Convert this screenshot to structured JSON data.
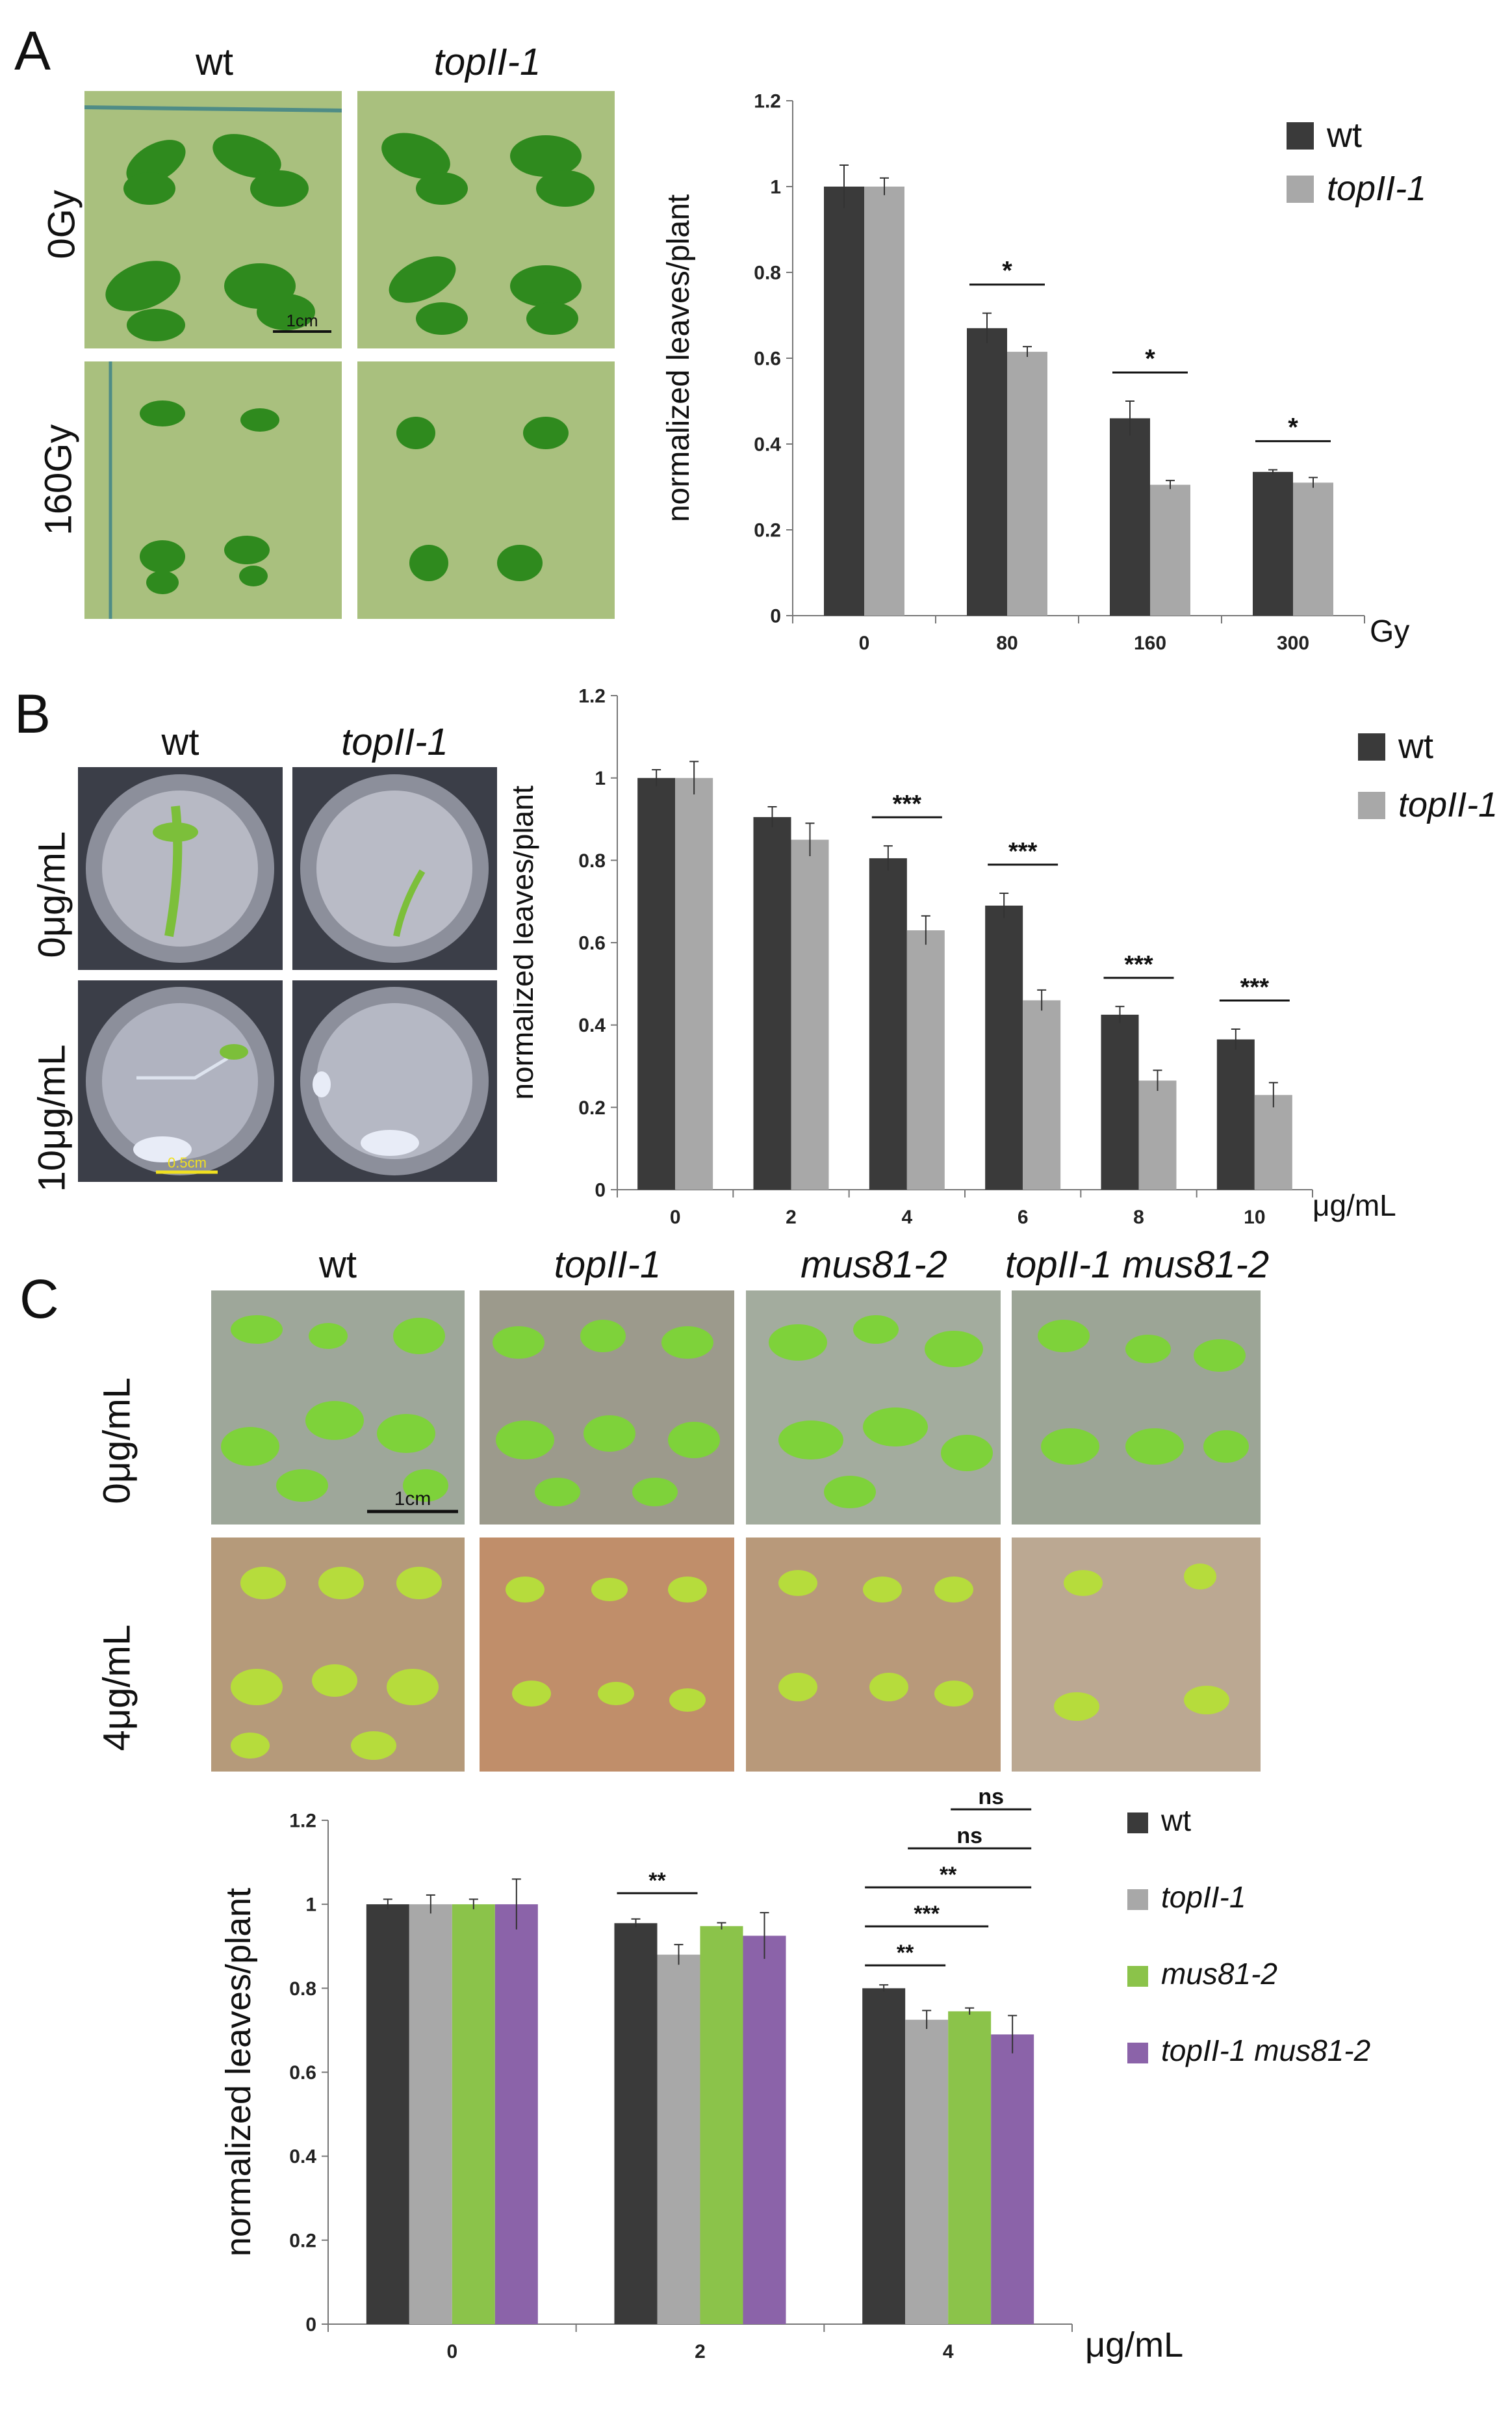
{
  "panels": {
    "A": {
      "letter": "A",
      "columns": [
        "wt",
        "topII-1"
      ],
      "rows": [
        "0Gy",
        "160Gy"
      ],
      "scale_bar": "1cm",
      "colors": {
        "plate": "#a9c07e",
        "plant": "#2f8a1e"
      }
    },
    "B": {
      "letter": "B",
      "columns": [
        "wt",
        "topII-1"
      ],
      "rows": [
        "0μg/mL",
        "10μg/mL"
      ],
      "scale_bar": "0.5cm",
      "colors": {
        "plate": "#8c8f9b",
        "plant": "#7cbf3a"
      }
    },
    "C": {
      "letter": "C",
      "columns": [
        "wt",
        "topII-1",
        "mus81-2",
        "topII-1 mus81-2"
      ],
      "rows": [
        "0μg/mL",
        "4μg/mL"
      ],
      "scale_bar": "1cm",
      "colors": {
        "plate_top": "#9ea79a",
        "plate_bottom": "#b59a7a",
        "plant_top": "#7ed23a",
        "plant_bottom": "#b6dc3c"
      }
    }
  },
  "chart_data": [
    {
      "id": "A",
      "type": "bar",
      "categories": [
        "0",
        "80",
        "160",
        "300"
      ],
      "x_unit": "Gy",
      "ylabel": "normalized leaves/plant",
      "ylim": [
        0,
        1.2
      ],
      "yticks": [
        "0",
        "0.2",
        "0.4",
        "0.6",
        "0.8",
        "1",
        "1.2"
      ],
      "series": [
        {
          "name": "wt",
          "color": "#3a3a3a",
          "values": [
            1.0,
            0.67,
            0.46,
            0.335
          ],
          "errors": [
            0.05,
            0.035,
            0.04,
            0.005
          ]
        },
        {
          "name": "topII-1",
          "color": "#a8a8a8",
          "values": [
            1.0,
            0.615,
            0.305,
            0.31
          ],
          "errors": [
            0.02,
            0.012,
            0.01,
            0.012
          ]
        }
      ],
      "significance": [
        {
          "group": 1,
          "label": "*"
        },
        {
          "group": 2,
          "label": "*"
        },
        {
          "group": 3,
          "label": "*"
        }
      ],
      "legend": "top-right"
    },
    {
      "id": "B",
      "type": "bar",
      "categories": [
        "0",
        "2",
        "4",
        "6",
        "8",
        "10"
      ],
      "x_unit": "μg/mL",
      "ylabel": "normalized leaves/plant",
      "ylim": [
        0,
        1.2
      ],
      "yticks": [
        "0",
        "0.2",
        "0.4",
        "0.6",
        "0.8",
        "1",
        "1.2"
      ],
      "series": [
        {
          "name": "wt",
          "color": "#3a3a3a",
          "values": [
            1.0,
            0.905,
            0.805,
            0.69,
            0.425,
            0.365
          ],
          "errors": [
            0.02,
            0.025,
            0.03,
            0.03,
            0.02,
            0.025
          ]
        },
        {
          "name": "topII-1",
          "color": "#a8a8a8",
          "values": [
            1.0,
            0.85,
            0.63,
            0.46,
            0.265,
            0.23
          ],
          "errors": [
            0.04,
            0.04,
            0.035,
            0.025,
            0.025,
            0.03
          ]
        }
      ],
      "significance": [
        {
          "group": 2,
          "label": "***"
        },
        {
          "group": 3,
          "label": "***"
        },
        {
          "group": 4,
          "label": "***"
        },
        {
          "group": 5,
          "label": "***"
        }
      ],
      "legend": "top-right"
    },
    {
      "id": "C",
      "type": "bar",
      "categories": [
        "0",
        "2",
        "4"
      ],
      "x_unit": "μg/mL",
      "ylabel": "normalized leaves/plant",
      "ylim": [
        0,
        1.2
      ],
      "yticks": [
        "0",
        "0.2",
        "0.4",
        "0.6",
        "0.8",
        "1",
        "1.2"
      ],
      "series": [
        {
          "name": "wt",
          "color": "#3a3a3a",
          "values": [
            1.0,
            0.955,
            0.8
          ],
          "errors": [
            0.012,
            0.01,
            0.008
          ]
        },
        {
          "name": "topII-1",
          "color": "#a8a8a8",
          "values": [
            1.0,
            0.88,
            0.725
          ],
          "errors": [
            0.022,
            0.024,
            0.022
          ]
        },
        {
          "name": "mus81-2",
          "color": "#8bc34a",
          "values": [
            1.0,
            0.948,
            0.745
          ],
          "errors": [
            0.012,
            0.008,
            0.008
          ]
        },
        {
          "name": "topII-1 mus81-2",
          "color": "#8b63a9",
          "values": [
            1.0,
            0.925,
            0.69
          ],
          "errors": [
            0.06,
            0.055,
            0.045
          ]
        }
      ],
      "significance": [
        {
          "group": 1,
          "from": 0,
          "to": 1,
          "label": "**"
        },
        {
          "group": 2,
          "from": 0,
          "to": 1,
          "label": "**"
        },
        {
          "group": 2,
          "from": 0,
          "to": 2,
          "label": "***"
        },
        {
          "group": 2,
          "from": 0,
          "to": 3,
          "label": "**"
        },
        {
          "group": 2,
          "from": 1,
          "to": 3,
          "label": "ns"
        },
        {
          "group": 2,
          "from": 2,
          "to": 3,
          "label": "ns"
        }
      ],
      "legend": "right"
    }
  ]
}
